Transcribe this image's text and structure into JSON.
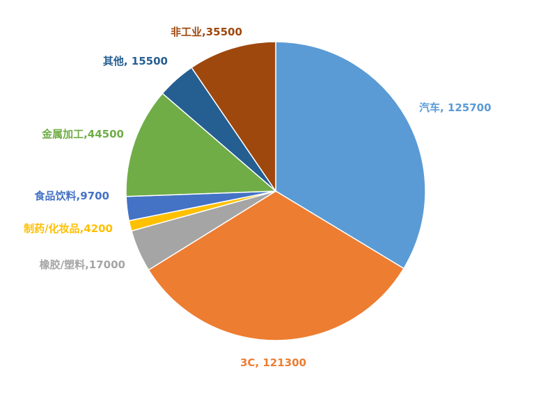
{
  "chart_data": {
    "type": "pie",
    "title": "",
    "slices": [
      {
        "name": "汽车",
        "value": 125700,
        "label": "汽车, 125700",
        "color": "#5B9BD5"
      },
      {
        "name": "3C",
        "value": 121300,
        "label": "3C, 121300",
        "color": "#ED7D31"
      },
      {
        "name": "橡胶/塑料",
        "value": 17000,
        "label": "橡胶/塑料,17000",
        "color": "#A5A5A5"
      },
      {
        "name": "制药/化妆品",
        "value": 4200,
        "label": "制药/化妆品,4200",
        "color": "#FFC000"
      },
      {
        "name": "食品饮料",
        "value": 9700,
        "label": "食品饮料,9700",
        "color": "#4472C4"
      },
      {
        "name": "金属加工",
        "value": 44500,
        "label": "金属加工,44500",
        "color": "#70AD47"
      },
      {
        "name": "其他",
        "value": 15500,
        "label": "其他, 15500",
        "color": "#255E91"
      },
      {
        "name": "非工业",
        "value": 35500,
        "label": "非工业,35500",
        "color": "#9E480E"
      }
    ]
  }
}
